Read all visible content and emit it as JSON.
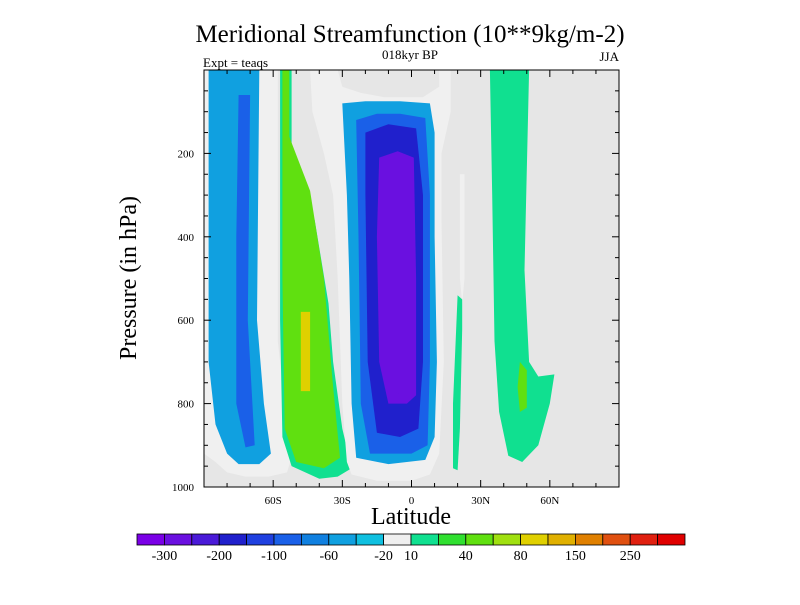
{
  "chart_data": {
    "type": "contour",
    "title": "Meridional Streamfunction (10**9kg/m-2)",
    "subtitle": "018kyr BP",
    "left_label": "Expt = teaqs",
    "right_label": "JJA",
    "xlabel": "Latitude",
    "ylabel": "Pressure (in hPa)",
    "xlim": [
      -90,
      90
    ],
    "ylim": [
      1000,
      0
    ],
    "x_ticks": [
      {
        "value": -60,
        "label": "60S"
      },
      {
        "value": -30,
        "label": "30S"
      },
      {
        "value": 0,
        "label": "0"
      },
      {
        "value": 30,
        "label": "30N"
      },
      {
        "value": 60,
        "label": "60N"
      }
    ],
    "y_ticks": [
      {
        "value": 200,
        "label": "200"
      },
      {
        "value": 400,
        "label": "400"
      },
      {
        "value": 600,
        "label": "600"
      },
      {
        "value": 800,
        "label": "800"
      },
      {
        "value": 1000,
        "label": "1000"
      }
    ],
    "background_color": "#e6e6e6",
    "colorbar": {
      "colors": [
        "#7a00e6",
        "#6a10e0",
        "#4a1ad8",
        "#2020cc",
        "#1f40e0",
        "#1a60e8",
        "#1080e0",
        "#10a0e0",
        "#10c0e0",
        "#f0f0f0",
        "#10e090",
        "#30e030",
        "#60e010",
        "#a0e010",
        "#e0d000",
        "#e0b000",
        "#e08000",
        "#e05010",
        "#e02010",
        "#e00000"
      ],
      "labels": [
        "-300",
        "-200",
        "-100",
        "-60",
        "-20",
        "10",
        "40",
        "80",
        "150",
        "250"
      ],
      "label_boundaries": [
        1,
        3,
        5,
        7,
        9,
        10,
        12,
        14,
        16,
        18
      ]
    },
    "regions": [
      {
        "level": "10",
        "pts": [
          [
            -90,
            0
          ],
          [
            90,
            0
          ],
          [
            90,
            1000
          ],
          [
            -90,
            1000
          ]
        ]
      },
      {
        "level": "-20",
        "pts": [
          [
            -90,
            0
          ],
          [
            -58,
            0
          ],
          [
            -58,
            650
          ],
          [
            -55,
            800
          ],
          [
            -52,
            930
          ],
          [
            -54,
            965
          ],
          [
            -62,
            975
          ],
          [
            -72,
            975
          ],
          [
            -80,
            965
          ],
          [
            -85,
            940
          ],
          [
            -90,
            920
          ]
        ]
      },
      {
        "level": "-60",
        "pts": [
          [
            -88,
            0
          ],
          [
            -66,
            0
          ],
          [
            -67,
            600
          ],
          [
            -64,
            800
          ],
          [
            -61,
            920
          ],
          [
            -66,
            945
          ],
          [
            -75,
            945
          ],
          [
            -80,
            920
          ],
          [
            -85,
            850
          ],
          [
            -88,
            700
          ]
        ]
      },
      {
        "level": "-100",
        "pts": [
          [
            -75,
            60
          ],
          [
            -70,
            60
          ],
          [
            -71,
            600
          ],
          [
            -68,
            900
          ],
          [
            -72,
            905
          ],
          [
            -76,
            800
          ],
          [
            -76,
            400
          ]
        ]
      },
      {
        "level": "10",
        "pts": [
          [
            -57,
            0
          ],
          [
            -52,
            0
          ],
          [
            -52,
            200
          ],
          [
            -42,
            360
          ],
          [
            -36,
            560
          ],
          [
            -34,
            700
          ],
          [
            -30,
            860
          ],
          [
            -26,
            955
          ],
          [
            -32,
            975
          ],
          [
            -40,
            980
          ],
          [
            -52,
            950
          ],
          [
            -56,
            880
          ],
          [
            -57,
            600
          ]
        ]
      },
      {
        "level": "40",
        "pts": [
          [
            -56,
            0
          ],
          [
            -53,
            0
          ],
          [
            -53,
            160
          ],
          [
            -44,
            290
          ],
          [
            -38,
            500
          ],
          [
            -34,
            760
          ],
          [
            -31,
            930
          ],
          [
            -38,
            955
          ],
          [
            -50,
            940
          ],
          [
            -55,
            860
          ],
          [
            -56,
            500
          ]
        ]
      },
      {
        "level": "80",
        "pts": [
          [
            -48,
            580
          ],
          [
            -44,
            580
          ],
          [
            -44,
            770
          ],
          [
            -48,
            770
          ]
        ]
      },
      {
        "level": "-20",
        "pts": [
          [
            -44,
            0
          ],
          [
            -32,
            0
          ],
          [
            -30,
            40
          ],
          [
            -22,
            55
          ],
          [
            -12,
            65
          ],
          [
            5,
            65
          ],
          [
            12,
            40
          ],
          [
            12,
            0
          ],
          [
            17,
            0
          ],
          [
            17,
            100
          ],
          [
            13,
            200
          ],
          [
            13,
            360
          ],
          [
            14,
            700
          ],
          [
            12,
            920
          ],
          [
            8,
            970
          ],
          [
            0,
            985
          ],
          [
            -15,
            985
          ],
          [
            -26,
            970
          ],
          [
            -28,
            940
          ],
          [
            -30,
            800
          ],
          [
            -32,
            500
          ],
          [
            -34,
            300
          ],
          [
            -38,
            200
          ],
          [
            -43,
            100
          ]
        ]
      },
      {
        "level": "-60",
        "pts": [
          [
            -30,
            80
          ],
          [
            -20,
            75
          ],
          [
            -5,
            75
          ],
          [
            8,
            80
          ],
          [
            10,
            150
          ],
          [
            10,
            400
          ],
          [
            11,
            700
          ],
          [
            10,
            880
          ],
          [
            6,
            935
          ],
          [
            -10,
            945
          ],
          [
            -24,
            930
          ],
          [
            -26,
            800
          ],
          [
            -27,
            500
          ],
          [
            -28,
            300
          ]
        ]
      },
      {
        "level": "-100",
        "pts": [
          [
            -24,
            120
          ],
          [
            -15,
            105
          ],
          [
            -5,
            105
          ],
          [
            6,
            115
          ],
          [
            8,
            300
          ],
          [
            8,
            700
          ],
          [
            7,
            900
          ],
          [
            0,
            920
          ],
          [
            -18,
            920
          ],
          [
            -22,
            800
          ],
          [
            -23,
            400
          ]
        ]
      },
      {
        "level": "-200",
        "pts": [
          [
            -20,
            150
          ],
          [
            -10,
            130
          ],
          [
            2,
            140
          ],
          [
            5,
            300
          ],
          [
            5,
            700
          ],
          [
            3,
            860
          ],
          [
            -5,
            880
          ],
          [
            -15,
            870
          ],
          [
            -19,
            700
          ],
          [
            -20,
            300
          ]
        ]
      },
      {
        "level": "-250",
        "pts": [
          [
            -14,
            210
          ],
          [
            -6,
            195
          ],
          [
            1,
            210
          ],
          [
            2,
            500
          ],
          [
            2,
            780
          ],
          [
            -2,
            800
          ],
          [
            -10,
            800
          ],
          [
            -14,
            700
          ],
          [
            -15,
            400
          ]
        ]
      },
      {
        "level": "-300",
        "pts": [
          [
            -9,
            420
          ],
          [
            -4,
            400
          ],
          [
            0,
            420
          ],
          [
            0,
            720
          ],
          [
            -4,
            780
          ],
          [
            -8,
            770
          ],
          [
            -10,
            650
          ]
        ]
      },
      {
        "level": "-20",
        "pts": [
          [
            21,
            250
          ],
          [
            23,
            250
          ],
          [
            23,
            500
          ],
          [
            22,
            560
          ],
          [
            21,
            500
          ]
        ]
      },
      {
        "level": "10",
        "pts": [
          [
            20,
            540
          ],
          [
            22,
            550
          ],
          [
            22,
            620
          ],
          [
            21,
            860
          ],
          [
            20,
            960
          ],
          [
            18,
            955
          ],
          [
            18,
            800
          ]
        ]
      },
      {
        "level": "10",
        "pts": [
          [
            34,
            0
          ],
          [
            51,
            0
          ],
          [
            49,
            480
          ],
          [
            51,
            700
          ],
          [
            55,
            735
          ],
          [
            62,
            730
          ],
          [
            60,
            800
          ],
          [
            55,
            900
          ],
          [
            48,
            940
          ],
          [
            42,
            925
          ],
          [
            38,
            820
          ],
          [
            36,
            650
          ],
          [
            35,
            300
          ]
        ]
      },
      {
        "level": "40",
        "pts": [
          [
            47,
            700
          ],
          [
            50,
            720
          ],
          [
            50,
            810
          ],
          [
            47,
            820
          ],
          [
            46,
            760
          ]
        ]
      }
    ]
  }
}
